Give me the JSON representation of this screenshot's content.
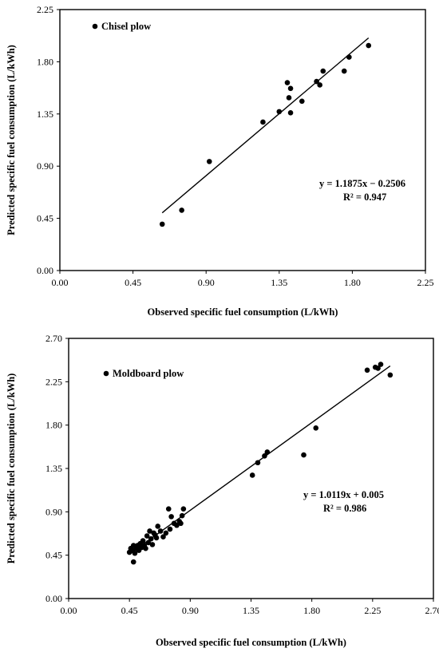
{
  "chart_data": [
    {
      "type": "scatter",
      "legend_marker_label": "Chisel plow",
      "xlabel": "Observed specific fuel consumption (L/kWh)",
      "ylabel": "Predicted specific fuel consumption (L/kWh)",
      "xlim": [
        0,
        2.25
      ],
      "ylim": [
        0,
        2.25
      ],
      "xticks": [
        "0.00",
        "0.45",
        "0.90",
        "1.35",
        "1.80",
        "2.25"
      ],
      "yticks": [
        "0.00",
        "0.45",
        "0.90",
        "1.35",
        "1.80",
        "2.25"
      ],
      "equation": "y = 1.1875x − 0.2506",
      "r2": "R² = 0.947",
      "fit": {
        "slope": 1.1875,
        "intercept": -0.2506,
        "x_range": [
          0.63,
          1.9
        ]
      },
      "points": [
        [
          0.63,
          0.4
        ],
        [
          0.75,
          0.52
        ],
        [
          0.92,
          0.94
        ],
        [
          1.25,
          1.28
        ],
        [
          1.35,
          1.37
        ],
        [
          1.4,
          1.62
        ],
        [
          1.41,
          1.49
        ],
        [
          1.42,
          1.57
        ],
        [
          1.42,
          1.36
        ],
        [
          1.49,
          1.46
        ],
        [
          1.58,
          1.63
        ],
        [
          1.6,
          1.6
        ],
        [
          1.62,
          1.72
        ],
        [
          1.75,
          1.72
        ],
        [
          1.78,
          1.84
        ],
        [
          1.9,
          1.94
        ]
      ]
    },
    {
      "type": "scatter",
      "legend_marker_label": "Moldboard plow",
      "xlabel": "Observed specific fuel consumption (L/kWh)",
      "ylabel": "Predicted specific fuel consumption (L/kWh)",
      "xlim": [
        0,
        2.7
      ],
      "ylim": [
        0,
        2.7
      ],
      "xticks": [
        "0.00",
        "0.45",
        "0.90",
        "1.35",
        "1.80",
        "2.25",
        "2.70"
      ],
      "yticks": [
        "0.00",
        "0.45",
        "0.90",
        "1.35",
        "1.80",
        "2.25",
        "2.70"
      ],
      "equation": "y = 1.0119x + 0.005",
      "r2": "R² = 0.986",
      "fit": {
        "slope": 1.0119,
        "intercept": 0.005,
        "x_range": [
          0.45,
          2.38
        ]
      },
      "points": [
        [
          0.45,
          0.48
        ],
        [
          0.46,
          0.52
        ],
        [
          0.47,
          0.5
        ],
        [
          0.48,
          0.38
        ],
        [
          0.48,
          0.55
        ],
        [
          0.49,
          0.47
        ],
        [
          0.5,
          0.52
        ],
        [
          0.51,
          0.55
        ],
        [
          0.52,
          0.5
        ],
        [
          0.53,
          0.57
        ],
        [
          0.54,
          0.53
        ],
        [
          0.55,
          0.6
        ],
        [
          0.56,
          0.55
        ],
        [
          0.57,
          0.52
        ],
        [
          0.58,
          0.65
        ],
        [
          0.59,
          0.58
        ],
        [
          0.6,
          0.7
        ],
        [
          0.61,
          0.62
        ],
        [
          0.62,
          0.56
        ],
        [
          0.63,
          0.68
        ],
        [
          0.64,
          0.66
        ],
        [
          0.65,
          0.63
        ],
        [
          0.66,
          0.75
        ],
        [
          0.68,
          0.7
        ],
        [
          0.7,
          0.64
        ],
        [
          0.72,
          0.68
        ],
        [
          0.74,
          0.93
        ],
        [
          0.75,
          0.72
        ],
        [
          0.76,
          0.85
        ],
        [
          0.78,
          0.78
        ],
        [
          0.8,
          0.76
        ],
        [
          0.82,
          0.8
        ],
        [
          0.83,
          0.78
        ],
        [
          0.84,
          0.86
        ],
        [
          0.85,
          0.93
        ],
        [
          1.36,
          1.28
        ],
        [
          1.4,
          1.41
        ],
        [
          1.45,
          1.48
        ],
        [
          1.47,
          1.52
        ],
        [
          1.74,
          1.49
        ],
        [
          1.83,
          1.77
        ],
        [
          2.21,
          2.37
        ],
        [
          2.27,
          2.4
        ],
        [
          2.29,
          2.39
        ],
        [
          2.31,
          2.43
        ],
        [
          2.38,
          2.32
        ]
      ]
    }
  ]
}
